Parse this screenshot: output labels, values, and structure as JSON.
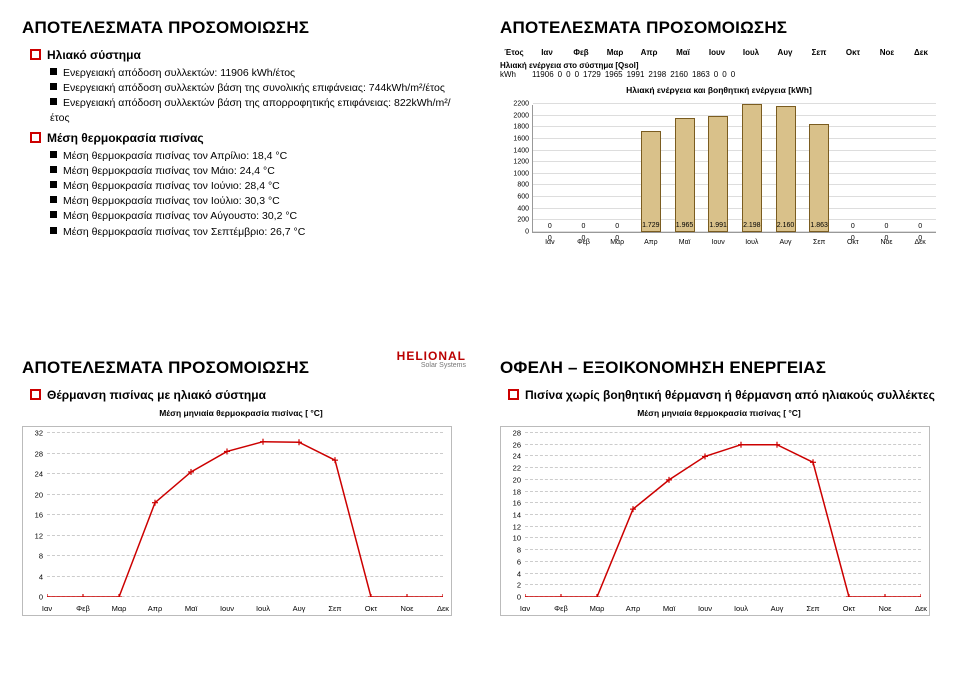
{
  "color_accent": "#c00000",
  "panel1": {
    "title": "ΑΠΟΤΕΛΕΣΜΑΤΑ ΠΡΟΣΟΜΟΙΩΣΗΣ",
    "sub": "Ηλιακό σύστημα",
    "items1": [
      "Ενεργειακή απόδοση συλλεκτών: 11906 kWh/έτος",
      "Ενεργειακή απόδοση συλλεκτών βάση της συνολικής επιφάνειας: 744kWh/m²/έτος",
      "Ενεργειακή απόδοση συλλεκτών βάση της απορροφητικής επιφάνειας: 822kWh/m²/έτος"
    ],
    "sub2": "Μέση θερμοκρασία πισίνας",
    "items2": [
      "Μέση θερμοκρασία πισίνας τον Απρίλιο: 18,4 °C",
      "Μέση θερμοκρασία πισίνας τον Μάιο: 24,4 °C",
      "Μέση θερμοκρασία πισίνας τον Ιούνιο: 28,4 °C",
      "Μέση θερμοκρασία πισίνας τον Ιούλιο: 30,3 °C",
      "Μέση θερμοκρασία πισίνας τον Αύγουστο: 30,2 °C",
      "Μέση θερμοκρασία πισίνας τον Σεπτέμβριο: 26,7 °C"
    ]
  },
  "panel2": {
    "title": "ΑΠΟΤΕΛΕΣΜΑΤΑ ΠΡΟΣΟΜΟΙΩΣΗΣ",
    "months": [
      "Έτος",
      "Ιαν",
      "Φεβ",
      "Μαρ",
      "Απρ",
      "Μαϊ",
      "Ιουν",
      "Ιουλ",
      "Αυγ",
      "Σεπ",
      "Οκτ",
      "Νοε",
      "Δεκ"
    ],
    "row_label": "Ηλιακή ενέργεια στο σύστημα [Qsol]",
    "row_unit_label": "kWh",
    "row_values": [
      "11906",
      "0",
      "0",
      "0",
      "1729",
      "1965",
      "1991",
      "2198",
      "2160",
      "1863",
      "0",
      "0",
      "0"
    ],
    "chart_title": "Ηλιακή ενέργεια και βοηθητική ενέργεια [kWh]",
    "chart": {
      "type": "bar",
      "categories": [
        "Ιαν",
        "Φεβ",
        "Μαρ",
        "Απρ",
        "Μαϊ",
        "Ιουν",
        "Ιουλ",
        "Αυγ",
        "Σεπ",
        "Οκτ",
        "Νοε",
        "Δεκ"
      ],
      "values": [
        0,
        0,
        0,
        1729,
        1965,
        1991,
        2198,
        2160,
        1863,
        0,
        0,
        0
      ],
      "bar_color_fill": "#d9c18a",
      "bar_color_border": "#7a5c20",
      "grid_color": "#dddddd",
      "ylim": [
        0,
        2200
      ],
      "ytick_step": 200,
      "label_fontsize": 7
    }
  },
  "panel3": {
    "title": "ΑΠΟΤΕΛΕΣΜΑΤΑ ΠΡΟΣΟΜΟΙΩΣΗΣ",
    "sub": "Θέρμανση πισίνας με ηλιακό σύστημα",
    "chart_title": "Μέση μηνιαία θερμοκρασία πισίνας [ °C]",
    "logo": {
      "brand": "HELIONAL",
      "sub": "Solar Systems"
    },
    "chart": {
      "type": "line",
      "months": [
        "Ιαν",
        "Φεβ",
        "Μαρ",
        "Απρ",
        "Μαϊ",
        "Ιουν",
        "Ιουλ",
        "Αυγ",
        "Σεπ",
        "Οκτ",
        "Νοε",
        "Δεκ"
      ],
      "values": [
        0,
        0,
        0,
        18.4,
        24.4,
        28.4,
        30.3,
        30.2,
        26.7,
        0,
        0,
        0
      ],
      "line_color": "#cc0000",
      "ylim": [
        0,
        32
      ],
      "ytick_step": 4
    }
  },
  "panel4": {
    "title": "ΟΦΕΛΗ – ΕΞΟΙΚΟΝΟΜΗΣΗ ΕΝΕΡΓΕΙΑΣ",
    "sub": "Πισίνα χωρίς βοηθητική θέρμανση ή θέρμανση από ηλιακούς συλλέκτες",
    "chart_title": "Μέση μηνιαία θερμοκρασία πισίνας [ °C]",
    "chart": {
      "type": "line",
      "months": [
        "Ιαν",
        "Φεβ",
        "Μαρ",
        "Απρ",
        "Μαϊ",
        "Ιουν",
        "Ιουλ",
        "Αυγ",
        "Σεπ",
        "Οκτ",
        "Νοε",
        "Δεκ"
      ],
      "values": [
        0,
        0,
        0,
        15,
        20,
        24,
        26,
        26,
        23,
        0,
        0,
        0
      ],
      "line_color": "#cc0000",
      "ylim": [
        0,
        28
      ],
      "ytick_step": 2
    }
  }
}
